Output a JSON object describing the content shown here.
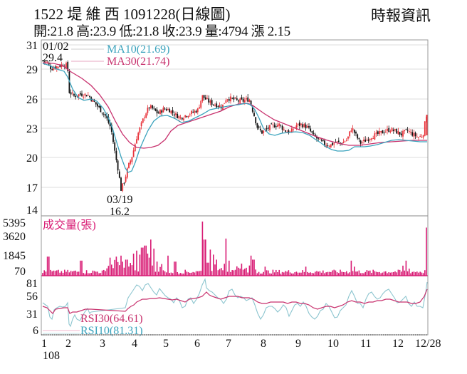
{
  "header": {
    "title": "1522  堤 維 西 1091228(日線圖)",
    "source": "時報資訊",
    "quote": "開:21.8 高:23.9 低:21.8 收:23.9 量:4794 漲 2.15"
  },
  "colors": {
    "up": "#e8323a",
    "down": "#111111",
    "ma10": "#3ba3bd",
    "ma30": "#c8326e",
    "volume": "#d81b74",
    "rsi30": "#c8326e",
    "rsi10": "#7fc0cc",
    "grid": "#d9d9d9",
    "frame": "#888888"
  },
  "chart_data": [
    {
      "type": "candlestick",
      "title": "1522 堤維西 1091228 (日線圖)",
      "panel": "price",
      "ylim": [
        14,
        31
      ],
      "yticks": [
        31,
        29,
        26,
        23,
        20,
        17,
        14
      ],
      "xticks": [
        "1",
        "2",
        "3",
        "4",
        "5",
        "6",
        "7",
        "8",
        "9",
        "10",
        "11",
        "12",
        "12/28"
      ],
      "xlabel_year": "108",
      "grid": true,
      "legend": [
        {
          "name": "MA10(21.69)",
          "color": "#3ba3bd"
        },
        {
          "name": "MA30(21.74)",
          "color": "#c8326e"
        }
      ],
      "annotations": [
        {
          "text": "01/02",
          "value": 29.4,
          "label": "29.4",
          "type": "high"
        },
        {
          "text": "03/19",
          "value": 16.2,
          "label": "16.2",
          "type": "low"
        }
      ],
      "last_bar": {
        "open": 21.8,
        "high": 23.9,
        "low": 21.8,
        "close": 23.9,
        "volume": 4794,
        "change": 2.15
      },
      "series": [
        {
          "name": "close_approx",
          "x": [
            "1",
            "1.5",
            "2",
            "2.5",
            "3",
            "3.3",
            "3.6",
            "3.8",
            "4",
            "4.3",
            "4.6",
            "5",
            "5.5",
            "6",
            "6.3",
            "6.6",
            "7",
            "7.4",
            "7.6",
            "8",
            "8.5",
            "9",
            "9.5",
            "10",
            "10.5",
            "11",
            "11.5",
            "12",
            "12.5",
            "12/28"
          ],
          "values": [
            29.2,
            28.8,
            26.0,
            25.6,
            24.0,
            20.5,
            16.8,
            19.0,
            21.5,
            24.0,
            24.2,
            24.0,
            23.6,
            25.4,
            25.0,
            24.5,
            25.2,
            24.8,
            22.2,
            22.0,
            22.8,
            22.5,
            20.6,
            21.0,
            21.3,
            21.5,
            22.0,
            22.5,
            22.0,
            23.9
          ]
        },
        {
          "name": "MA10",
          "x": [
            "1",
            "1.5",
            "2",
            "2.5",
            "3",
            "3.3",
            "3.6",
            "3.8",
            "4",
            "4.3",
            "4.6",
            "5",
            "5.5",
            "6",
            "6.3",
            "6.6",
            "7",
            "7.4",
            "7.6",
            "8",
            "8.5",
            "9",
            "9.5",
            "10",
            "10.5",
            "11",
            "11.5",
            "12",
            "12.5",
            "12/28"
          ],
          "values": [
            29.3,
            29.0,
            27.2,
            26.0,
            25.2,
            23.5,
            19.5,
            18.4,
            20.0,
            22.8,
            23.8,
            24.0,
            23.7,
            24.3,
            24.7,
            24.8,
            25.0,
            25.0,
            23.5,
            22.4,
            22.6,
            22.6,
            21.3,
            20.9,
            21.3,
            21.3,
            21.8,
            22.2,
            22.1,
            21.69
          ]
        },
        {
          "name": "MA30",
          "x": [
            "1",
            "1.5",
            "2",
            "2.5",
            "3",
            "3.3",
            "3.6",
            "3.8",
            "4",
            "4.3",
            "4.6",
            "5",
            "5.5",
            "6",
            "6.3",
            "6.6",
            "7",
            "7.4",
            "7.6",
            "8",
            "8.5",
            "9",
            "9.5",
            "10",
            "10.5",
            "11",
            "11.5",
            "12",
            "12.5",
            "12/28"
          ],
          "values": [
            29.4,
            29.2,
            28.3,
            27.2,
            25.8,
            24.2,
            22.3,
            21.6,
            21.7,
            21.8,
            22.2,
            23.0,
            23.5,
            23.8,
            24.3,
            24.7,
            25.0,
            25.0,
            24.4,
            23.6,
            23.0,
            22.6,
            22.0,
            21.4,
            21.2,
            21.3,
            21.6,
            21.8,
            21.9,
            21.74
          ]
        }
      ]
    },
    {
      "type": "bar",
      "panel": "volume",
      "title": "成交量(張)",
      "ylim": [
        0,
        5395
      ],
      "yticks": [
        5395,
        3620,
        1845,
        70
      ],
      "note": "daily volume bars, approximate",
      "x": [
        "1",
        "1.5",
        "2",
        "2.5",
        "3",
        "3.3",
        "3.6",
        "3.8",
        "4",
        "4.3",
        "4.6",
        "5",
        "5.5",
        "6",
        "6.15",
        "6.3",
        "6.6",
        "7",
        "7.3",
        "7.6",
        "8",
        "8.5",
        "9",
        "9.5",
        "10",
        "10.5",
        "10.7",
        "11",
        "11.5",
        "12",
        "12.3",
        "12/28"
      ],
      "values": [
        400,
        600,
        700,
        500,
        600,
        900,
        1700,
        1500,
        2200,
        2700,
        1900,
        600,
        400,
        5395,
        3100,
        700,
        600,
        3700,
        900,
        600,
        1500,
        500,
        400,
        400,
        300,
        400,
        1300,
        300,
        400,
        500,
        900,
        4794
      ]
    },
    {
      "type": "line",
      "panel": "rsi",
      "ylim": [
        0,
        85
      ],
      "yticks": [
        81,
        56,
        31,
        6
      ],
      "legend": [
        {
          "name": "RSI30(64.61)",
          "color": "#c8326e"
        },
        {
          "name": "RSI10(81.31)",
          "color": "#7fc0cc"
        }
      ],
      "series": [
        {
          "name": "RSI30",
          "x": [
            "1",
            "1.5",
            "2",
            "2.5",
            "3",
            "3.8",
            "4",
            "4.5",
            "5",
            "5.5",
            "6",
            "6.5",
            "7",
            "7.5",
            "8",
            "8.5",
            "9",
            "9.5",
            "10",
            "10.5",
            "11",
            "11.5",
            "12",
            "12.5",
            "12/28"
          ],
          "values": [
            40,
            38,
            29,
            31,
            33,
            33,
            45,
            50,
            49,
            46,
            54,
            50,
            49,
            47,
            44,
            43,
            43,
            41,
            38,
            48,
            44,
            47,
            46,
            43,
            64.61
          ]
        },
        {
          "name": "RSI10",
          "x": [
            "1",
            "1.5",
            "2",
            "2.5",
            "3",
            "3.8",
            "4",
            "4.5",
            "5",
            "5.5",
            "6",
            "6.5",
            "7",
            "7.5",
            "8",
            "8.5",
            "9",
            "9.5",
            "10",
            "10.5",
            "11",
            "11.5",
            "12",
            "12.5",
            "12/28"
          ],
          "values": [
            43,
            28,
            20,
            30,
            36,
            40,
            68,
            72,
            60,
            48,
            76,
            55,
            53,
            50,
            28,
            46,
            40,
            24,
            26,
            62,
            44,
            62,
            56,
            38,
            81.31
          ]
        }
      ]
    }
  ]
}
